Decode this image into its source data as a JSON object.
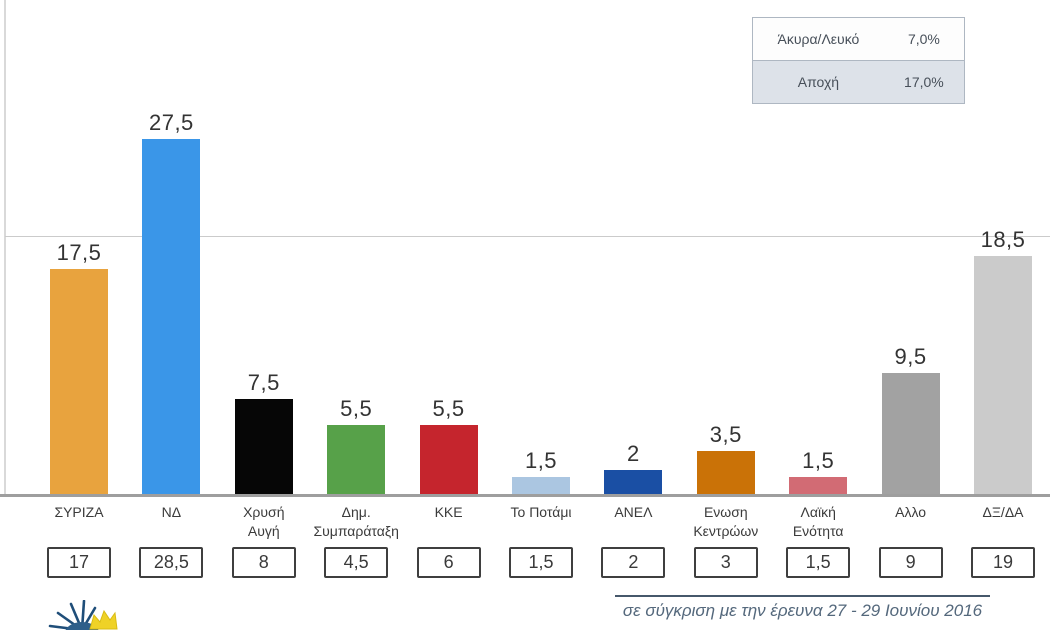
{
  "summary_table": {
    "rows": [
      {
        "label": "Άκυρα/Λευκό",
        "value": "7,0%"
      },
      {
        "label": "Αποχή",
        "value": "17,0%"
      }
    ]
  },
  "chart_data": {
    "type": "bar",
    "title": "",
    "xlabel": "",
    "ylabel": "",
    "unit": "percent",
    "ylim": [
      0,
      38
    ],
    "gridlines_y": [
      20
    ],
    "legend_position": "none",
    "categories": [
      "ΣΥΡΙΖΑ",
      "ΝΔ",
      "Χρυσή Αυγή",
      "Δημ. Συμπαράταξη",
      "ΚΚΕ",
      "Το Ποτάμι",
      "ΑΝΕΛ",
      "Ενωση Κεντρώων",
      "Λαϊκή Ενότητα",
      "Αλλο",
      "ΔΞ/ΔΑ"
    ],
    "values": [
      17.5,
      27.5,
      7.5,
      5.5,
      5.5,
      1.5,
      2,
      3.5,
      1.5,
      9.5,
      18.5
    ],
    "previous_values": [
      17,
      28.5,
      8,
      4.5,
      6,
      1.5,
      2,
      3,
      1.5,
      9,
      19
    ],
    "parties": [
      {
        "name": "ΣΥΡΙΖΑ",
        "display_name": "ΣΥΡΙΖΑ",
        "value": 17.5,
        "value_label": "17,5",
        "previous_label": "17",
        "color": "#E8A33E"
      },
      {
        "name": "ΝΔ",
        "display_name": "ΝΔ",
        "value": 27.5,
        "value_label": "27,5",
        "previous_label": "28,5",
        "color": "#3A96E8"
      },
      {
        "name": "Χρυσή Αυγή",
        "display_name": "Χρυσή\nΑυγή",
        "value": 7.5,
        "value_label": "7,5",
        "previous_label": "8",
        "color": "#060606"
      },
      {
        "name": "Δημ. Συμπαράταξη",
        "display_name": "Δημ.\nΣυμπαράταξη",
        "value": 5.5,
        "value_label": "5,5",
        "previous_label": "4,5",
        "color": "#57A149"
      },
      {
        "name": "ΚΚΕ",
        "display_name": "ΚΚΕ",
        "value": 5.5,
        "value_label": "5,5",
        "previous_label": "6",
        "color": "#C5252D"
      },
      {
        "name": "Το Ποτάμι",
        "display_name": "Το Ποτάμι",
        "value": 1.5,
        "value_label": "1,5",
        "previous_label": "1,5",
        "color": "#ABC6E1"
      },
      {
        "name": "ΑΝΕΛ",
        "display_name": "ΑΝΕΛ",
        "value": 2,
        "value_label": "2",
        "previous_label": "2",
        "color": "#1A4FA4"
      },
      {
        "name": "Ενωση Κεντρώων",
        "display_name": "Ενωση\nΚεντρώων",
        "value": 3.5,
        "value_label": "3,5",
        "previous_label": "3",
        "color": "#CA7207"
      },
      {
        "name": "Λαϊκή Ενότητα",
        "display_name": "Λαϊκή\nΕνότητα",
        "value": 1.5,
        "value_label": "1,5",
        "previous_label": "1,5",
        "color": "#D26B74"
      },
      {
        "name": "Αλλο",
        "display_name": "Αλλο",
        "value": 9.5,
        "value_label": "9,5",
        "previous_label": "9",
        "color": "#A2A2A2"
      },
      {
        "name": "ΔΞ/ΔΑ",
        "display_name": "ΔΞ/ΔΑ",
        "value": 18.5,
        "value_label": "18,5",
        "previous_label": "19",
        "color": "#CBCBCB"
      }
    ]
  },
  "footer": {
    "comparison_note": "σε σύγκριση με την έρευνα 27 - 29 Ιουνίου 2016"
  },
  "icons": {
    "logo": "sunburst-logo"
  }
}
